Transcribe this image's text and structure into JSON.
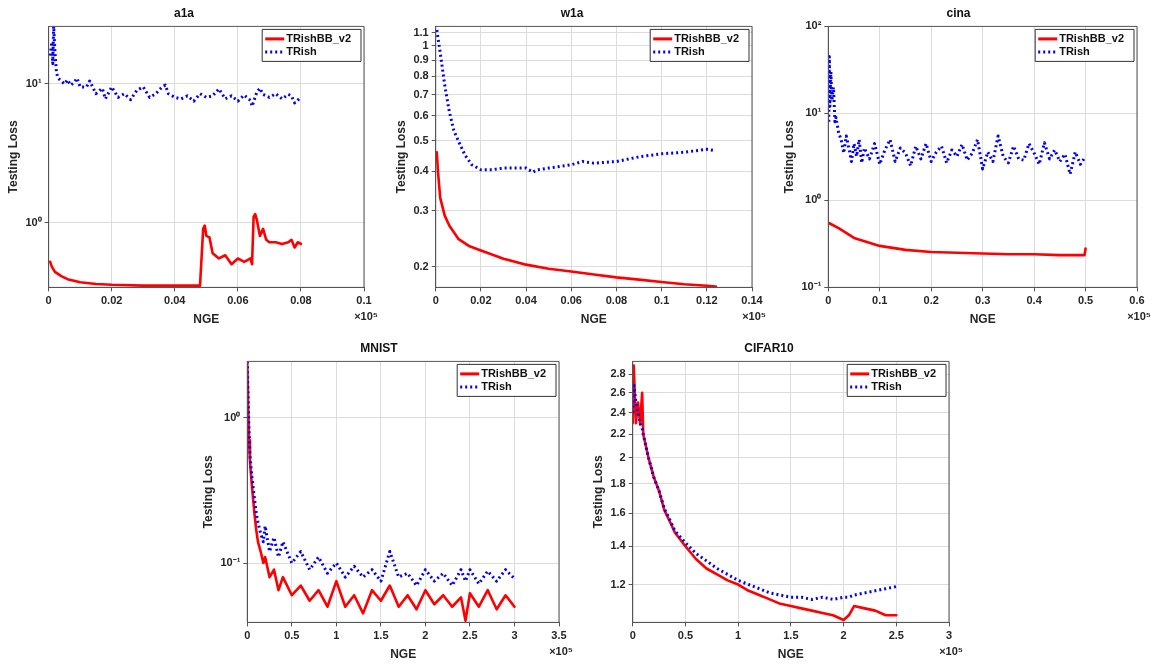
{
  "chart_data": [
    {
      "type": "line",
      "title": "a1a",
      "xlabel": "NGE",
      "ylabel": "Testing Loss",
      "log": "y",
      "grid": true,
      "legend": "top right",
      "marker": "none",
      "xlim": [
        0,
        0.1
      ],
      "xticks": [
        0,
        0.02,
        0.04,
        0.06,
        0.08,
        0.1
      ],
      "ylim": [
        0.34,
        26
      ],
      "yticks": [
        {
          "value": 1,
          "label": "10⁰"
        },
        {
          "value": 10,
          "label": "10¹"
        }
      ],
      "annotations": [
        "×10⁵"
      ],
      "series": [
        {
          "name": "TRishBB_v2",
          "color": "#ff0000",
          "line_style": "solid",
          "x": [
            0.0005,
            0.001,
            0.002,
            0.004,
            0.006,
            0.01,
            0.015,
            0.02,
            0.03,
            0.04,
            0.047,
            0.048,
            0.049,
            0.0495,
            0.05,
            0.051,
            0.052,
            0.054,
            0.056,
            0.058,
            0.06,
            0.062,
            0.064,
            0.0645,
            0.065,
            0.0655,
            0.066,
            0.067,
            0.068,
            0.069,
            0.07,
            0.072,
            0.074,
            0.076,
            0.077,
            0.078,
            0.079,
            0.08
          ],
          "values": [
            0.52,
            0.48,
            0.44,
            0.41,
            0.39,
            0.37,
            0.36,
            0.355,
            0.35,
            0.35,
            0.35,
            0.35,
            0.9,
            0.95,
            0.8,
            0.78,
            0.6,
            0.55,
            0.58,
            0.5,
            0.55,
            0.52,
            0.55,
            0.5,
            1.1,
            1.15,
            1.05,
            0.8,
            0.9,
            0.75,
            0.72,
            0.72,
            0.7,
            0.72,
            0.75,
            0.66,
            0.72,
            0.7
          ]
        },
        {
          "name": "TRish",
          "color": "#0000ff",
          "line_style": "dotted",
          "x": [
            0.0005,
            0.001,
            0.0013,
            0.0016,
            0.002,
            0.0025,
            0.003,
            0.004,
            0.005,
            0.006,
            0.007,
            0.008,
            0.009,
            0.01,
            0.012,
            0.013,
            0.015,
            0.017,
            0.018,
            0.02,
            0.022,
            0.024,
            0.026,
            0.028,
            0.03,
            0.032,
            0.034,
            0.036,
            0.037,
            0.038,
            0.04,
            0.042,
            0.044,
            0.046,
            0.048,
            0.05,
            0.052,
            0.054,
            0.056,
            0.058,
            0.06,
            0.062,
            0.064,
            0.0645,
            0.066,
            0.067,
            0.068,
            0.07,
            0.072,
            0.074,
            0.076,
            0.077,
            0.078,
            0.08
          ],
          "values": [
            16,
            20,
            14,
            26,
            17,
            12,
            11,
            10.5,
            10,
            10.7,
            9.8,
            10.2,
            11,
            9.5,
            9.5,
            10.5,
            8.5,
            9.3,
            7.8,
            9.5,
            8,
            8.5,
            7.7,
            9,
            9.5,
            8,
            8.5,
            9.5,
            9.8,
            8.5,
            8,
            7.8,
            8.2,
            7.5,
            8.5,
            8,
            8.2,
            9.2,
            7.8,
            8.2,
            7.5,
            8.3,
            7.6,
            6.9,
            8.7,
            9.3,
            8.4,
            8,
            8.5,
            7.8,
            8.4,
            8.2,
            7.3,
            8
          ]
        }
      ]
    },
    {
      "type": "line",
      "title": "w1a",
      "xlabel": "NGE",
      "ylabel": "Testing Loss",
      "log": "y",
      "grid": true,
      "legend": "top right",
      "marker": "none",
      "xlim": [
        0,
        0.14
      ],
      "xticks": [
        0,
        0.02,
        0.04,
        0.06,
        0.08,
        0.1,
        0.12,
        0.14
      ],
      "ylim": [
        0.172,
        1.15
      ],
      "yticks": [
        0.2,
        0.3,
        0.4,
        0.5,
        0.6,
        0.7,
        0.8,
        0.9,
        1,
        1.1
      ],
      "annotations": [
        "×10⁵"
      ],
      "series": [
        {
          "name": "TRishBB_v2",
          "color": "#ff0000",
          "line_style": "solid",
          "x": [
            0.0005,
            0.001,
            0.002,
            0.004,
            0.006,
            0.01,
            0.015,
            0.02,
            0.03,
            0.04,
            0.05,
            0.06,
            0.07,
            0.08,
            0.09,
            0.1,
            0.11,
            0.12,
            0.124
          ],
          "values": [
            0.46,
            0.4,
            0.33,
            0.29,
            0.27,
            0.245,
            0.232,
            0.225,
            0.212,
            0.203,
            0.197,
            0.193,
            0.189,
            0.185,
            0.182,
            0.179,
            0.176,
            0.174,
            0.173
          ]
        },
        {
          "name": "TRish",
          "color": "#0000ff",
          "line_style": "dotted",
          "x": [
            0.0005,
            0.002,
            0.004,
            0.006,
            0.008,
            0.01,
            0.013,
            0.016,
            0.02,
            0.025,
            0.03,
            0.035,
            0.04,
            0.043,
            0.045,
            0.05,
            0.06,
            0.065,
            0.07,
            0.08,
            0.09,
            0.1,
            0.11,
            0.12,
            0.124
          ],
          "values": [
            1.12,
            0.95,
            0.75,
            0.62,
            0.54,
            0.5,
            0.45,
            0.42,
            0.405,
            0.405,
            0.41,
            0.41,
            0.41,
            0.398,
            0.405,
            0.41,
            0.42,
            0.43,
            0.425,
            0.43,
            0.445,
            0.455,
            0.46,
            0.47,
            0.465
          ]
        }
      ]
    },
    {
      "type": "line",
      "title": "cina",
      "xlabel": "NGE",
      "ylabel": "Testing Loss",
      "log": "y",
      "grid": true,
      "legend": "top right",
      "marker": "none",
      "xlim": [
        0,
        0.6
      ],
      "xticks": [
        0,
        0.1,
        0.2,
        0.3,
        0.4,
        0.5,
        0.6
      ],
      "ylim": [
        0.1,
        100
      ],
      "yticks": [
        {
          "value": 0.1,
          "label": "10⁻¹"
        },
        {
          "value": 1,
          "label": "10⁰"
        },
        {
          "value": 10,
          "label": "10¹"
        },
        {
          "value": 100,
          "label": "10²"
        }
      ],
      "annotations": [
        "×10⁵"
      ],
      "series": [
        {
          "name": "TRishBB_v2",
          "color": "#ff0000",
          "line_style": "solid",
          "x": [
            0.001,
            0.02,
            0.05,
            0.1,
            0.15,
            0.2,
            0.25,
            0.3,
            0.35,
            0.4,
            0.45,
            0.498,
            0.5
          ],
          "values": [
            0.55,
            0.48,
            0.37,
            0.3,
            0.27,
            0.255,
            0.25,
            0.245,
            0.24,
            0.24,
            0.235,
            0.235,
            0.28
          ]
        },
        {
          "name": "TRish",
          "color": "#0000ff",
          "line_style": "dotted",
          "x": [
            0.001,
            0.002,
            0.003,
            0.005,
            0.007,
            0.01,
            0.013,
            0.015,
            0.02,
            0.025,
            0.03,
            0.035,
            0.04,
            0.045,
            0.05,
            0.055,
            0.06,
            0.065,
            0.07,
            0.08,
            0.09,
            0.1,
            0.11,
            0.12,
            0.13,
            0.14,
            0.15,
            0.16,
            0.17,
            0.18,
            0.19,
            0.2,
            0.21,
            0.22,
            0.23,
            0.24,
            0.25,
            0.26,
            0.27,
            0.28,
            0.29,
            0.3,
            0.31,
            0.32,
            0.33,
            0.34,
            0.35,
            0.36,
            0.37,
            0.38,
            0.39,
            0.4,
            0.41,
            0.42,
            0.43,
            0.44,
            0.45,
            0.46,
            0.47,
            0.48,
            0.49,
            0.5
          ],
          "values": [
            8,
            45,
            12,
            30,
            14,
            20,
            8,
            9,
            6,
            5,
            3.5,
            5.5,
            4,
            2.8,
            4.5,
            3.2,
            5,
            2.7,
            4,
            3,
            4.5,
            2.6,
            3.8,
            5,
            2.8,
            4,
            3.5,
            2.5,
            4.2,
            3,
            4.5,
            2.8,
            3.6,
            4.2,
            2.7,
            3.8,
            3.2,
            4.4,
            2.9,
            3.5,
            5,
            2.3,
            3.6,
            2.8,
            5.5,
            3.2,
            2.7,
            4.2,
            3,
            2.9,
            4.5,
            3.5,
            2.6,
            4.6,
            3,
            3.8,
            2.8,
            3.4,
            2,
            3.6,
            2.6,
            3.2
          ]
        }
      ]
    },
    {
      "type": "line",
      "title": "MNIST",
      "xlabel": "NGE",
      "ylabel": "Testing Loss",
      "log": "y",
      "grid": true,
      "legend": "top right",
      "marker": "none",
      "xlim": [
        0,
        3.5
      ],
      "xticks": [
        0,
        0.5,
        1,
        1.5,
        2,
        2.5,
        3,
        3.5
      ],
      "ylim": [
        0.039,
        2.45
      ],
      "yticks": [
        {
          "value": 0.1,
          "label": "10⁻¹"
        },
        {
          "value": 1,
          "label": "10⁰"
        }
      ],
      "annotations": [
        "×10⁵"
      ],
      "x": [
        0,
        0.01,
        0.02,
        0.03,
        0.05,
        0.08,
        0.1,
        0.12,
        0.15,
        0.18,
        0.2,
        0.25,
        0.3,
        0.35,
        0.4,
        0.5,
        0.6,
        0.7,
        0.8,
        0.9,
        1.0,
        1.1,
        1.2,
        1.3,
        1.4,
        1.5,
        1.6,
        1.7,
        1.8,
        1.9,
        2.0,
        2.1,
        2.2,
        2.3,
        2.4,
        2.45,
        2.5,
        2.6,
        2.7,
        2.8,
        2.9,
        3.0
      ],
      "series": [
        {
          "name": "TRishBB_v2",
          "color": "#ff0000",
          "line_style": "solid",
          "values": [
            2.4,
            1.2,
            0.7,
            0.5,
            0.35,
            0.22,
            0.17,
            0.14,
            0.12,
            0.1,
            0.11,
            0.08,
            0.09,
            0.065,
            0.08,
            0.06,
            0.07,
            0.055,
            0.065,
            0.05,
            0.075,
            0.05,
            0.06,
            0.045,
            0.065,
            0.055,
            0.07,
            0.05,
            0.06,
            0.048,
            0.065,
            0.052,
            0.06,
            0.05,
            0.058,
            0.04,
            0.062,
            0.05,
            0.065,
            0.048,
            0.06,
            0.05
          ]
        },
        {
          "name": "TRish",
          "color": "#0000ff",
          "line_style": "dotted",
          "values": [
            2.45,
            1.3,
            0.8,
            0.55,
            0.4,
            0.28,
            0.22,
            0.19,
            0.16,
            0.14,
            0.18,
            0.12,
            0.15,
            0.11,
            0.14,
            0.1,
            0.12,
            0.09,
            0.11,
            0.085,
            0.1,
            0.08,
            0.095,
            0.08,
            0.09,
            0.075,
            0.12,
            0.08,
            0.085,
            0.07,
            0.09,
            0.075,
            0.085,
            0.07,
            0.09,
            0.075,
            0.09,
            0.072,
            0.088,
            0.075,
            0.09,
            0.078
          ]
        }
      ]
    },
    {
      "type": "line",
      "title": "CIFAR10",
      "xlabel": "NGE",
      "ylabel": "Testing Loss",
      "log": "y",
      "grid": true,
      "legend": "top right",
      "marker": "none",
      "xlim": [
        0,
        3
      ],
      "xticks": [
        0,
        0.5,
        1,
        1.5,
        2,
        2.5,
        3
      ],
      "ylim": [
        1.03,
        2.95
      ],
      "yticks": [
        1.2,
        1.4,
        1.6,
        1.8,
        2,
        2.2,
        2.4,
        2.6,
        2.8
      ],
      "annotations": [
        "×10⁵"
      ],
      "x": [
        0,
        0.01,
        0.03,
        0.05,
        0.07,
        0.09,
        0.1,
        0.15,
        0.2,
        0.25,
        0.3,
        0.35,
        0.4,
        0.5,
        0.6,
        0.7,
        0.8,
        0.9,
        1.0,
        1.1,
        1.2,
        1.3,
        1.4,
        1.5,
        1.6,
        1.7,
        1.8,
        1.9,
        2.0,
        2.05,
        2.1,
        2.2,
        2.3,
        2.4,
        2.5
      ],
      "series": [
        {
          "name": "TRishBB_v2",
          "color": "#ff0000",
          "line_style": "solid",
          "values": [
            2.3,
            2.9,
            2.3,
            2.5,
            2.3,
            2.6,
            2.2,
            2.0,
            1.85,
            1.75,
            1.62,
            1.55,
            1.48,
            1.4,
            1.33,
            1.28,
            1.25,
            1.22,
            1.2,
            1.17,
            1.15,
            1.13,
            1.11,
            1.1,
            1.09,
            1.08,
            1.07,
            1.06,
            1.04,
            1.06,
            1.1,
            1.09,
            1.08,
            1.06,
            1.06
          ]
        },
        {
          "name": "TRish",
          "color": "#0000ff",
          "line_style": "dotted",
          "values": [
            2.4,
            2.7,
            2.5,
            2.4,
            2.3,
            2.25,
            2.2,
            2.0,
            1.85,
            1.75,
            1.63,
            1.56,
            1.49,
            1.42,
            1.36,
            1.32,
            1.28,
            1.25,
            1.22,
            1.2,
            1.18,
            1.16,
            1.15,
            1.14,
            1.14,
            1.13,
            1.14,
            1.13,
            1.14,
            1.14,
            1.15,
            1.16,
            1.17,
            1.18,
            1.19
          ]
        }
      ]
    }
  ]
}
